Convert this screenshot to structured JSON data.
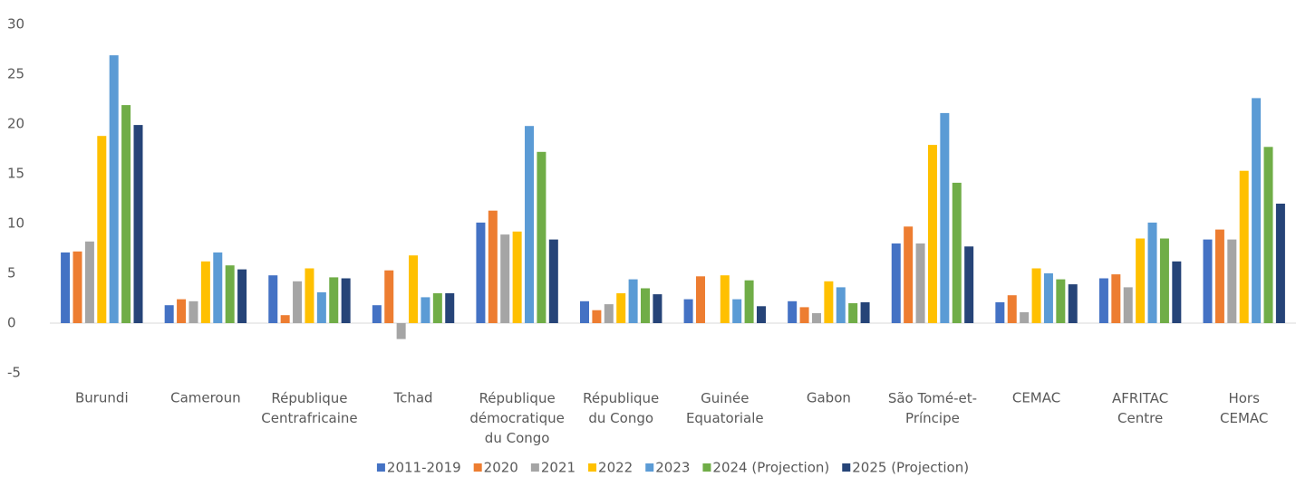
{
  "chart_data": {
    "type": "bar",
    "categories": [
      "Burundi",
      "Cameroun",
      "République\nCentrafricaine",
      "Tchad",
      "République\ndémocratique\ndu Congo",
      "République\ndu Congo",
      "Guinée\nEquatoriale",
      "Gabon",
      "São Tomé-et-\nPríncipe",
      "CEMAC",
      "AFRITAC\nCentre",
      "Hors\nCEMAC"
    ],
    "series": [
      {
        "name": "2011-2019",
        "color": "#4472c4",
        "values": [
          7.1,
          1.8,
          4.8,
          1.8,
          10.1,
          2.2,
          2.4,
          2.2,
          8.0,
          2.1,
          4.5,
          8.4
        ]
      },
      {
        "name": "2020",
        "color": "#ed7d31",
        "values": [
          7.2,
          2.4,
          0.8,
          5.3,
          11.3,
          1.3,
          4.7,
          1.6,
          9.7,
          2.8,
          4.9,
          9.4
        ]
      },
      {
        "name": "2021",
        "color": "#a5a5a5",
        "values": [
          8.2,
          2.2,
          4.2,
          -1.6,
          8.9,
          1.9,
          null,
          1.0,
          8.0,
          1.1,
          3.6,
          8.4
        ]
      },
      {
        "name": "2022",
        "color": "#ffc000",
        "values": [
          18.8,
          6.2,
          5.5,
          6.8,
          9.2,
          3.0,
          4.8,
          4.2,
          17.9,
          5.5,
          8.5,
          15.3
        ]
      },
      {
        "name": "2023",
        "color": "#5b9bd5",
        "values": [
          26.9,
          7.1,
          3.1,
          2.6,
          19.8,
          4.4,
          2.4,
          3.6,
          21.1,
          5.0,
          10.1,
          22.6
        ]
      },
      {
        "name": "2024 (Projection)",
        "color": "#70ad47",
        "values": [
          21.9,
          5.8,
          4.6,
          3.0,
          17.2,
          3.5,
          4.3,
          2.0,
          14.1,
          4.4,
          8.5,
          17.7
        ]
      },
      {
        "name": "2025 (Projection)",
        "color": "#264478",
        "values": [
          19.9,
          5.4,
          4.5,
          3.0,
          8.4,
          2.9,
          1.7,
          2.1,
          7.7,
          3.9,
          6.2,
          12.0
        ]
      }
    ],
    "ylim": [
      -5,
      30
    ],
    "yticks": [
      -5,
      0,
      5,
      10,
      15,
      20,
      25,
      30
    ],
    "grid": false,
    "legend": "bottom"
  }
}
